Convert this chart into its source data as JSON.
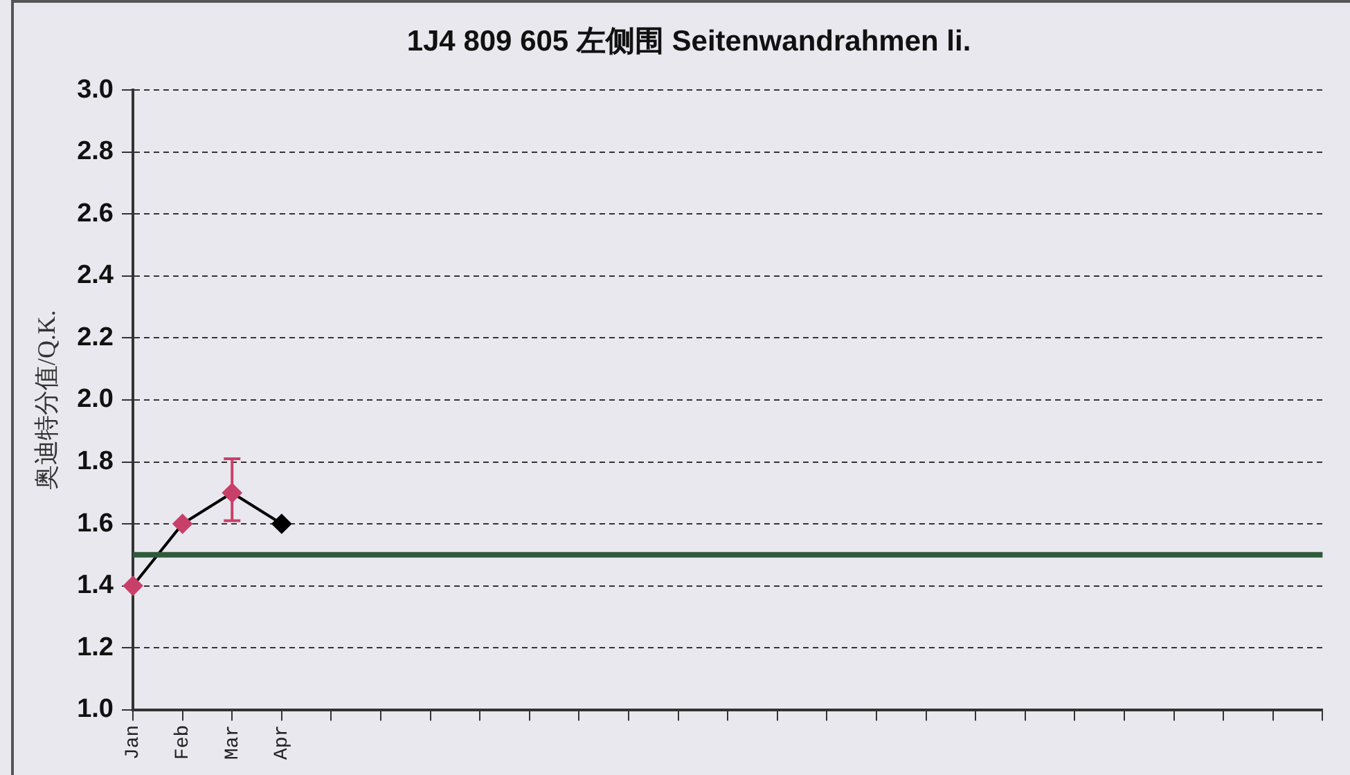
{
  "chart_data": {
    "type": "line",
    "title": "1J4 809 605 左侧围 Seitenwandrahmen li.",
    "ylabel": "奥迪特分值/Q.K.",
    "categories": [
      "Jan",
      "Feb",
      "Mar",
      "Apr",
      null,
      null,
      null,
      null,
      null,
      null,
      null,
      null,
      null,
      null,
      null,
      null,
      null,
      null,
      null,
      null,
      null,
      null,
      null,
      null,
      null
    ],
    "series": [
      {
        "color": "#000000",
        "colors": [
          "#c8406a",
          "#c8406a",
          "#c8406a",
          "#000000",
          null,
          null,
          null,
          null,
          null,
          null,
          null,
          null,
          null,
          null,
          null,
          null,
          null,
          null,
          null,
          null,
          null,
          null,
          null,
          null,
          null
        ],
        "values": [
          1.4,
          1.6,
          1.7,
          1.6,
          null,
          null,
          null,
          null,
          null,
          null,
          null,
          null,
          null,
          null,
          null,
          null,
          null,
          null,
          null,
          null,
          null,
          null,
          null,
          null,
          null
        ],
        "errors": [
          null,
          null,
          [
            1.61,
            1.81
          ],
          null,
          null,
          null,
          null,
          null,
          null,
          null,
          null,
          null,
          null,
          null,
          null,
          null,
          null,
          null,
          null,
          null,
          null,
          null,
          null,
          null,
          null
        ]
      }
    ],
    "ylim": [
      1.0,
      3.0
    ],
    "yticks": [
      {
        "value": 1,
        "label": "1.0"
      },
      1.2,
      1.4,
      1.6,
      1.8,
      {
        "value": 2,
        "label": "2.0"
      },
      2.2,
      2.4,
      2.6,
      2.8,
      {
        "value": 3,
        "label": "3.0"
      }
    ],
    "ref_lines": [
      {
        "axis": "y",
        "value": 1.5,
        "color": "#2e5a3a"
      }
    ],
    "grid": "y",
    "legend": false,
    "marker": "diamond",
    "line_style": "solid"
  }
}
